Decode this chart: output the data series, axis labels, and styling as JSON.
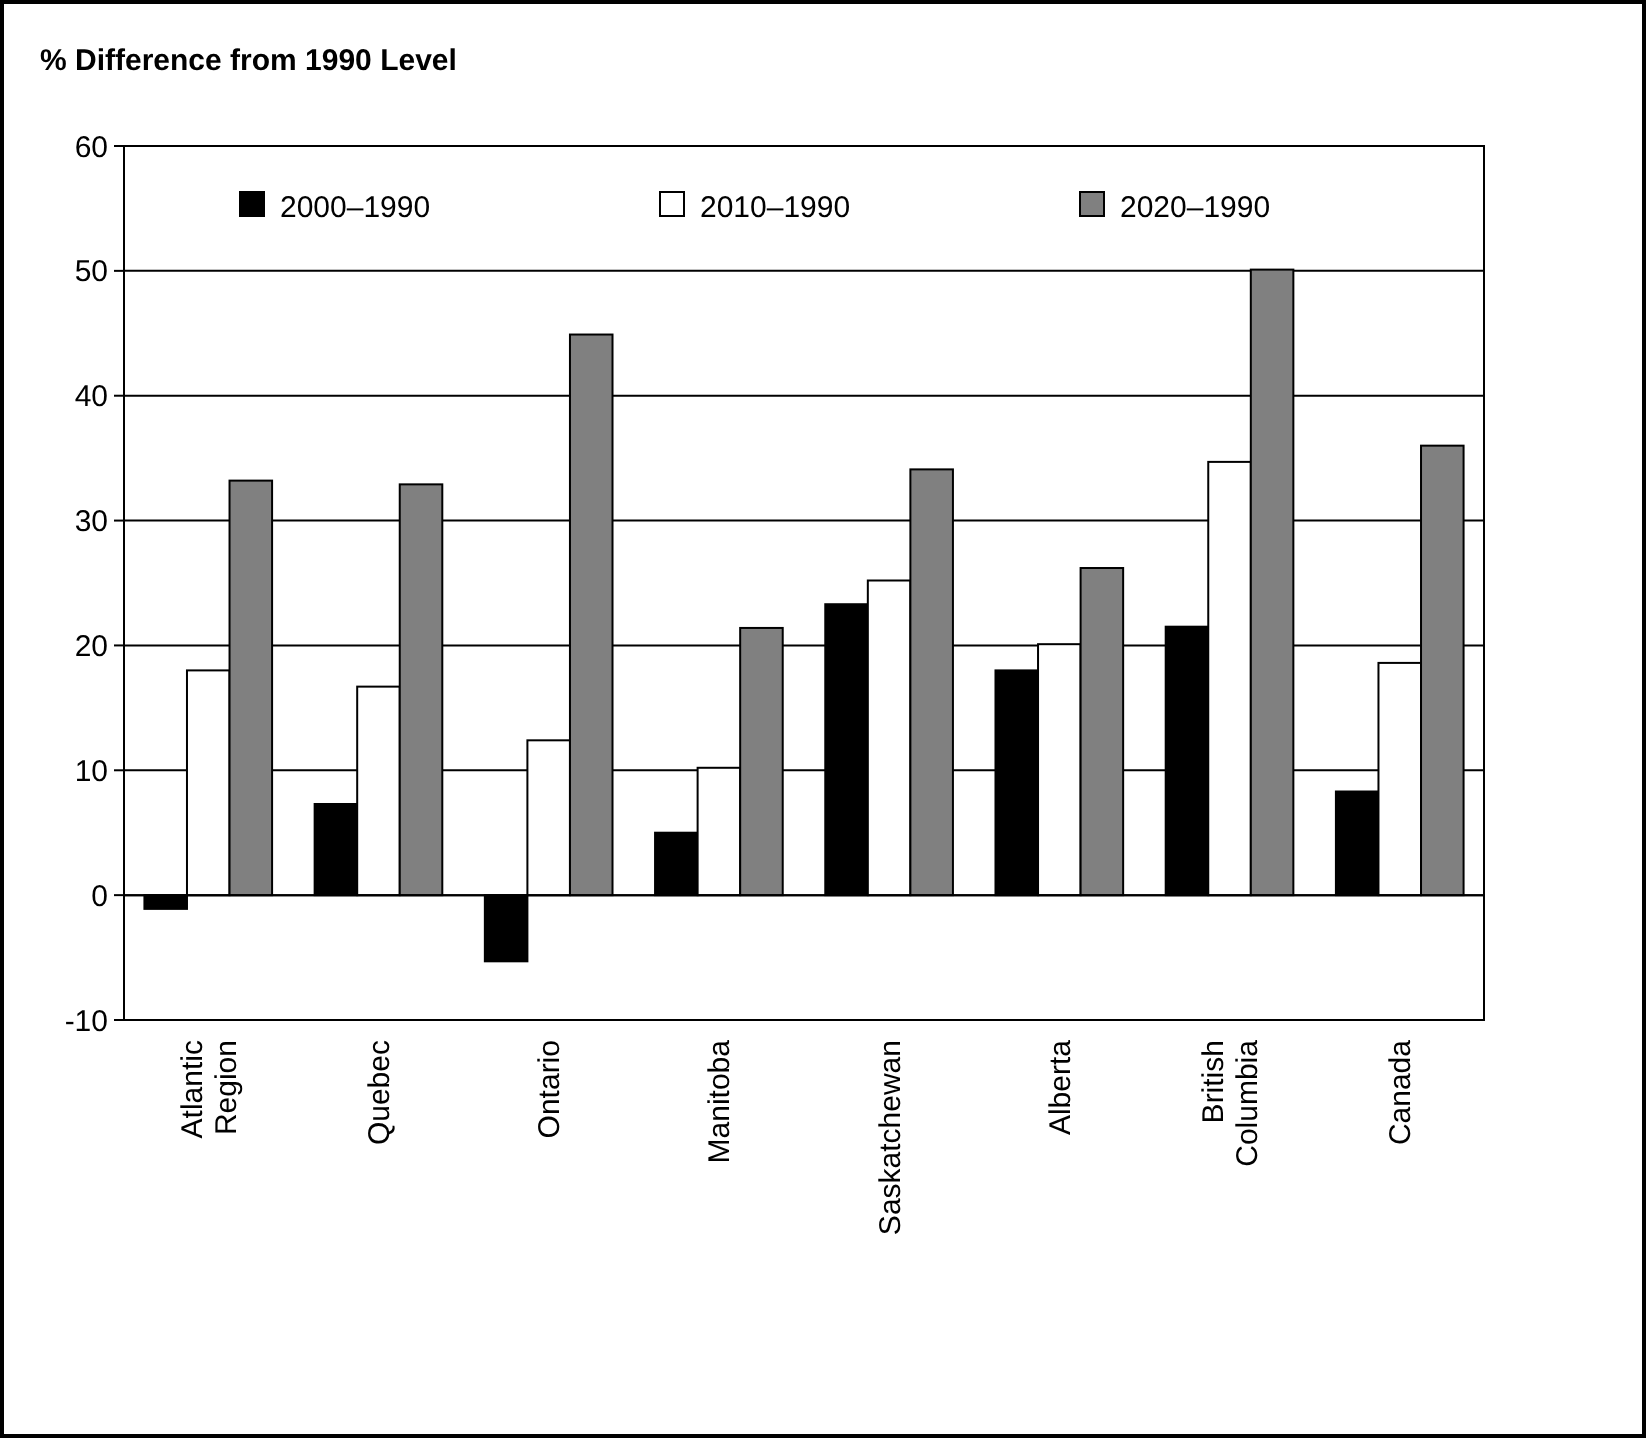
{
  "chart_data": {
    "type": "bar",
    "title": "% Difference from 1990 Level",
    "categories": [
      "Atlantic Region",
      "Quebec",
      "Ontario",
      "Manitoba",
      "Saskatchewan",
      "Alberta",
      "British Columbia",
      "Canada"
    ],
    "series": [
      {
        "name": "2000–1990",
        "color": "#000000",
        "values": [
          -1.1,
          7.3,
          -5.3,
          5.0,
          23.3,
          18.0,
          21.5,
          8.3
        ]
      },
      {
        "name": "2010–1990",
        "color": "#ffffff",
        "values": [
          18.0,
          16.7,
          12.4,
          10.2,
          25.2,
          20.1,
          34.7,
          18.6
        ]
      },
      {
        "name": "2020–1990",
        "color": "#808080",
        "values": [
          33.2,
          32.9,
          44.9,
          21.4,
          34.1,
          26.2,
          50.1,
          36.0
        ]
      }
    ],
    "ylim": [
      -10,
      60
    ],
    "yticks": [
      -10,
      0,
      10,
      20,
      30,
      40,
      50,
      60
    ],
    "grid": "y",
    "legend": "top"
  }
}
